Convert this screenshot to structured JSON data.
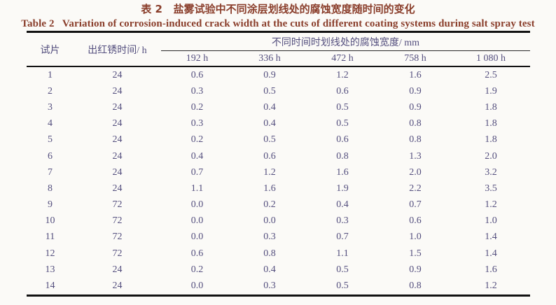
{
  "colors": {
    "background": "#fbfaf7",
    "caption_text": "#8a3e2b",
    "table_text": "#544f7e",
    "rule_line": "#121212"
  },
  "caption": {
    "zh": "表 2   盐雾试验中不同涂层划线处的腐蚀宽度随时间的变化",
    "en": "Table 2   Variation of corrosion-induced crack width at the cuts of different coating systems during salt spray test"
  },
  "table": {
    "headers": {
      "specimen": "试片",
      "rust_time": "出红锈时间/ h",
      "span": "不同时间时划线处的腐蚀宽度/ mm",
      "times": [
        "192 h",
        "336 h",
        "472 h",
        "758 h",
        "1 080 h"
      ]
    }
  },
  "chart_data": {
    "type": "table",
    "title_zh": "表 2   盐雾试验中不同涂层划线处的腐蚀宽度随时间的变化",
    "title_en": "Table 2   Variation of corrosion-induced crack width at the cuts of different coating systems during salt spray test",
    "columns": [
      "试片",
      "出红锈时间/ h",
      "192 h",
      "336 h",
      "472 h",
      "758 h",
      "1 080 h"
    ],
    "column_group_label": "不同时间时划线处的腐蚀宽度/ mm",
    "rows": [
      [
        "1",
        "24",
        "0.6",
        "0.9",
        "1.2",
        "1.6",
        "2.5"
      ],
      [
        "2",
        "24",
        "0.3",
        "0.5",
        "0.6",
        "0.9",
        "1.9"
      ],
      [
        "3",
        "24",
        "0.2",
        "0.4",
        "0.5",
        "0.9",
        "1.8"
      ],
      [
        "4",
        "24",
        "0.3",
        "0.4",
        "0.5",
        "0.8",
        "1.8"
      ],
      [
        "5",
        "24",
        "0.2",
        "0.5",
        "0.6",
        "0.8",
        "1.8"
      ],
      [
        "6",
        "24",
        "0.4",
        "0.6",
        "0.8",
        "1.3",
        "2.0"
      ],
      [
        "7",
        "24",
        "0.7",
        "1.2",
        "1.6",
        "2.0",
        "3.2"
      ],
      [
        "8",
        "24",
        "1.1",
        "1.6",
        "1.9",
        "2.2",
        "3.5"
      ],
      [
        "9",
        "72",
        "0.0",
        "0.2",
        "0.4",
        "0.7",
        "1.2"
      ],
      [
        "10",
        "72",
        "0.0",
        "0.0",
        "0.3",
        "0.6",
        "1.0"
      ],
      [
        "11",
        "72",
        "0.0",
        "0.3",
        "0.7",
        "1.0",
        "1.4"
      ],
      [
        "12",
        "72",
        "0.6",
        "0.8",
        "1.1",
        "1.5",
        "1.4"
      ],
      [
        "13",
        "24",
        "0.2",
        "0.4",
        "0.5",
        "0.9",
        "1.6"
      ],
      [
        "14",
        "24",
        "0.0",
        "0.3",
        "0.5",
        "0.8",
        "1.2"
      ]
    ]
  }
}
